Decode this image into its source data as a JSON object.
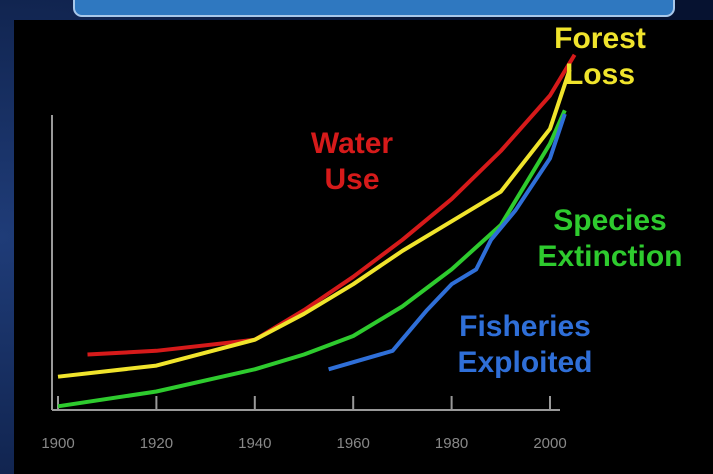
{
  "chart_data": {
    "type": "line",
    "xlim": [
      1894,
      2014
    ],
    "xticks": [
      1900,
      1920,
      1940,
      1960,
      1980,
      2000
    ],
    "ylim": [
      0,
      100
    ],
    "series": [
      {
        "name": "Water Use",
        "color": "#d61a1a",
        "x": [
          1906,
          1920,
          1940,
          1950,
          1960,
          1970,
          1980,
          1990,
          2000,
          2005
        ],
        "values": [
          15,
          16,
          19,
          27,
          36,
          46,
          57,
          70,
          85,
          96
        ]
      },
      {
        "name": "Forest Loss",
        "color": "#f0e42c",
        "x": [
          1900,
          1920,
          1940,
          1950,
          1960,
          1970,
          1980,
          1990,
          2000,
          2004
        ],
        "values": [
          9,
          12,
          19,
          26,
          34,
          43,
          51,
          59,
          76,
          92
        ]
      },
      {
        "name": "Species Extinction",
        "color": "#2ecb2e",
        "x": [
          1900,
          1920,
          1940,
          1950,
          1960,
          1970,
          1980,
          1990,
          2000,
          2003
        ],
        "values": [
          1,
          5,
          11,
          15,
          20,
          28,
          38,
          50,
          72,
          81
        ]
      },
      {
        "name": "Fisheries Exploited",
        "color": "#2f6fd8",
        "x": [
          1955,
          1968,
          1975,
          1980,
          1985,
          1988,
          1993,
          2000,
          2003
        ],
        "values": [
          11,
          16,
          27,
          34,
          38,
          46,
          54,
          68,
          80
        ]
      }
    ]
  }
}
